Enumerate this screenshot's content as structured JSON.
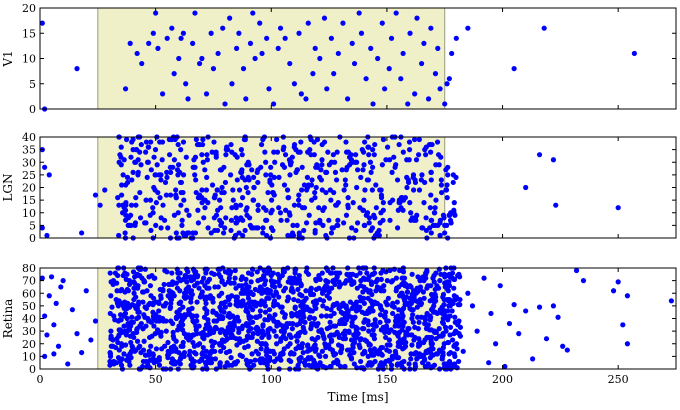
{
  "chart_data": [
    {
      "type": "scatter",
      "ylabel": "V1",
      "xlim": [
        0,
        275
      ],
      "ylim": [
        0,
        20
      ],
      "xticks": [
        0,
        50,
        100,
        150,
        200,
        250
      ],
      "yticks": [
        0,
        5,
        10,
        15,
        20
      ],
      "x_tick_labels_shown": false,
      "stimulus_window_ms": [
        25,
        175
      ],
      "highlight_color": "#efefc8",
      "marker_color": "#0000ff",
      "grid": false,
      "points": [
        {
          "x": 1,
          "y": 17
        },
        {
          "x": 2,
          "y": 0
        },
        {
          "x": 16,
          "y": 8
        },
        {
          "x": 37,
          "y": 4
        },
        {
          "x": 39,
          "y": 13
        },
        {
          "x": 42,
          "y": 11
        },
        {
          "x": 44,
          "y": 9
        },
        {
          "x": 47,
          "y": 13
        },
        {
          "x": 49,
          "y": 15
        },
        {
          "x": 50,
          "y": 19
        },
        {
          "x": 51,
          "y": 12
        },
        {
          "x": 53,
          "y": 3
        },
        {
          "x": 55,
          "y": 14
        },
        {
          "x": 57,
          "y": 16
        },
        {
          "x": 58,
          "y": 7
        },
        {
          "x": 60,
          "y": 10
        },
        {
          "x": 61,
          "y": 14
        },
        {
          "x": 62,
          "y": 15
        },
        {
          "x": 63,
          "y": 5
        },
        {
          "x": 64,
          "y": 2
        },
        {
          "x": 66,
          "y": 13
        },
        {
          "x": 67,
          "y": 19
        },
        {
          "x": 69,
          "y": 9
        },
        {
          "x": 70,
          "y": 10
        },
        {
          "x": 72,
          "y": 3
        },
        {
          "x": 74,
          "y": 15
        },
        {
          "x": 75,
          "y": 8
        },
        {
          "x": 77,
          "y": 11
        },
        {
          "x": 79,
          "y": 16
        },
        {
          "x": 80,
          "y": 1
        },
        {
          "x": 82,
          "y": 18
        },
        {
          "x": 83,
          "y": 5
        },
        {
          "x": 85,
          "y": 12
        },
        {
          "x": 86,
          "y": 15
        },
        {
          "x": 88,
          "y": 8
        },
        {
          "x": 89,
          "y": 2
        },
        {
          "x": 91,
          "y": 13
        },
        {
          "x": 92,
          "y": 19
        },
        {
          "x": 93,
          "y": 10
        },
        {
          "x": 95,
          "y": 17
        },
        {
          "x": 96,
          "y": 11
        },
        {
          "x": 98,
          "y": 14
        },
        {
          "x": 99,
          "y": 4
        },
        {
          "x": 101,
          "y": 1
        },
        {
          "x": 103,
          "y": 12
        },
        {
          "x": 104,
          "y": 16
        },
        {
          "x": 106,
          "y": 14
        },
        {
          "x": 108,
          "y": 9
        },
        {
          "x": 110,
          "y": 5
        },
        {
          "x": 112,
          "y": 15
        },
        {
          "x": 113,
          "y": 3
        },
        {
          "x": 115,
          "y": 2
        },
        {
          "x": 116,
          "y": 17
        },
        {
          "x": 118,
          "y": 7
        },
        {
          "x": 119,
          "y": 12
        },
        {
          "x": 121,
          "y": 10
        },
        {
          "x": 123,
          "y": 18
        },
        {
          "x": 124,
          "y": 4
        },
        {
          "x": 126,
          "y": 14
        },
        {
          "x": 127,
          "y": 7
        },
        {
          "x": 129,
          "y": 11
        },
        {
          "x": 131,
          "y": 17
        },
        {
          "x": 133,
          "y": 2
        },
        {
          "x": 135,
          "y": 13
        },
        {
          "x": 136,
          "y": 9
        },
        {
          "x": 138,
          "y": 19
        },
        {
          "x": 139,
          "y": 15
        },
        {
          "x": 141,
          "y": 6
        },
        {
          "x": 143,
          "y": 12
        },
        {
          "x": 144,
          "y": 1
        },
        {
          "x": 146,
          "y": 10
        },
        {
          "x": 148,
          "y": 17
        },
        {
          "x": 149,
          "y": 4
        },
        {
          "x": 151,
          "y": 8
        },
        {
          "x": 152,
          "y": 14
        },
        {
          "x": 154,
          "y": 19
        },
        {
          "x": 156,
          "y": 6
        },
        {
          "x": 157,
          "y": 11
        },
        {
          "x": 159,
          "y": 1
        },
        {
          "x": 160,
          "y": 15
        },
        {
          "x": 162,
          "y": 3
        },
        {
          "x": 163,
          "y": 18
        },
        {
          "x": 165,
          "y": 9
        },
        {
          "x": 166,
          "y": 13
        },
        {
          "x": 168,
          "y": 2
        },
        {
          "x": 169,
          "y": 16
        },
        {
          "x": 171,
          "y": 7
        },
        {
          "x": 172,
          "y": 12
        },
        {
          "x": 173,
          "y": 4
        },
        {
          "x": 175,
          "y": 1
        },
        {
          "x": 176,
          "y": 5
        },
        {
          "x": 177,
          "y": 6
        },
        {
          "x": 178,
          "y": 11
        },
        {
          "x": 180,
          "y": 14
        },
        {
          "x": 185,
          "y": 16
        },
        {
          "x": 205,
          "y": 8
        },
        {
          "x": 218,
          "y": 16
        },
        {
          "x": 257,
          "y": 11
        }
      ]
    },
    {
      "type": "scatter",
      "ylabel": "LGN",
      "xlim": [
        0,
        275
      ],
      "ylim": [
        0,
        40
      ],
      "xticks": [
        0,
        50,
        100,
        150,
        200,
        250
      ],
      "yticks": [
        0,
        5,
        10,
        15,
        20,
        25,
        30,
        35,
        40
      ],
      "x_tick_labels_shown": false,
      "stimulus_window_ms": [
        25,
        175
      ],
      "highlight_color": "#efefc8",
      "marker_color": "#0000ff",
      "grid": false,
      "points": [
        {
          "x": 1,
          "y": 35
        },
        {
          "x": 2,
          "y": 28
        },
        {
          "x": 1,
          "y": 4
        },
        {
          "x": 3,
          "y": 1
        },
        {
          "x": 4,
          "y": 25
        },
        {
          "x": 18,
          "y": 2
        },
        {
          "x": 24,
          "y": 17
        },
        {
          "x": 26,
          "y": 13
        },
        {
          "x": 28,
          "y": 19
        },
        {
          "x": 210,
          "y": 20
        },
        {
          "x": 216,
          "y": 33
        },
        {
          "x": 222,
          "y": 31
        },
        {
          "x": 223,
          "y": 13
        },
        {
          "x": 250,
          "y": 12
        }
      ],
      "dense_segment": {
        "x_range": [
          33,
          180
        ],
        "y_range": [
          0,
          40
        ],
        "approx_count": 650,
        "seed": 7
      }
    },
    {
      "type": "scatter",
      "ylabel": "Retina",
      "xlabel": "Time [ms]",
      "xlim": [
        0,
        275
      ],
      "ylim": [
        0,
        80
      ],
      "xticks": [
        0,
        50,
        100,
        150,
        200,
        250
      ],
      "yticks": [
        0,
        10,
        20,
        30,
        40,
        50,
        60,
        70,
        80
      ],
      "x_tick_labels_shown": true,
      "stimulus_window_ms": [
        25,
        175
      ],
      "highlight_color": "#efefc8",
      "marker_color": "#0000ff",
      "grid": false,
      "points": [
        {
          "x": 1,
          "y": 72
        },
        {
          "x": 2,
          "y": 42
        },
        {
          "x": 3,
          "y": 27
        },
        {
          "x": 2,
          "y": 10
        },
        {
          "x": 4,
          "y": 58
        },
        {
          "x": 5,
          "y": 73
        },
        {
          "x": 6,
          "y": 12
        },
        {
          "x": 6,
          "y": 35
        },
        {
          "x": 7,
          "y": 52
        },
        {
          "x": 8,
          "y": 18
        },
        {
          "x": 9,
          "y": 65
        },
        {
          "x": 10,
          "y": 70
        },
        {
          "x": 12,
          "y": 4
        },
        {
          "x": 14,
          "y": 47
        },
        {
          "x": 16,
          "y": 28
        },
        {
          "x": 18,
          "y": 13
        },
        {
          "x": 20,
          "y": 62
        },
        {
          "x": 22,
          "y": 23
        },
        {
          "x": 24,
          "y": 38
        },
        {
          "x": 183,
          "y": 14
        },
        {
          "x": 185,
          "y": 60
        },
        {
          "x": 187,
          "y": 50
        },
        {
          "x": 189,
          "y": 30
        },
        {
          "x": 192,
          "y": 72
        },
        {
          "x": 194,
          "y": 5
        },
        {
          "x": 195,
          "y": 44
        },
        {
          "x": 197,
          "y": 20
        },
        {
          "x": 199,
          "y": 66
        },
        {
          "x": 201,
          "y": 2
        },
        {
          "x": 203,
          "y": 36
        },
        {
          "x": 205,
          "y": 51
        },
        {
          "x": 207,
          "y": 28
        },
        {
          "x": 210,
          "y": 46
        },
        {
          "x": 213,
          "y": 8
        },
        {
          "x": 216,
          "y": 49
        },
        {
          "x": 219,
          "y": 24
        },
        {
          "x": 222,
          "y": 50
        },
        {
          "x": 224,
          "y": 41
        },
        {
          "x": 226,
          "y": 18
        },
        {
          "x": 228,
          "y": 15
        },
        {
          "x": 232,
          "y": 78
        },
        {
          "x": 235,
          "y": 70
        },
        {
          "x": 248,
          "y": 62
        },
        {
          "x": 250,
          "y": 69
        },
        {
          "x": 252,
          "y": 35
        },
        {
          "x": 254,
          "y": 20
        },
        {
          "x": 254,
          "y": 58
        },
        {
          "x": 273,
          "y": 54
        }
      ],
      "dense_segment": {
        "x_range": [
          30,
          182
        ],
        "y_range": [
          0,
          80
        ],
        "approx_count": 1700,
        "seed": 13
      }
    }
  ]
}
